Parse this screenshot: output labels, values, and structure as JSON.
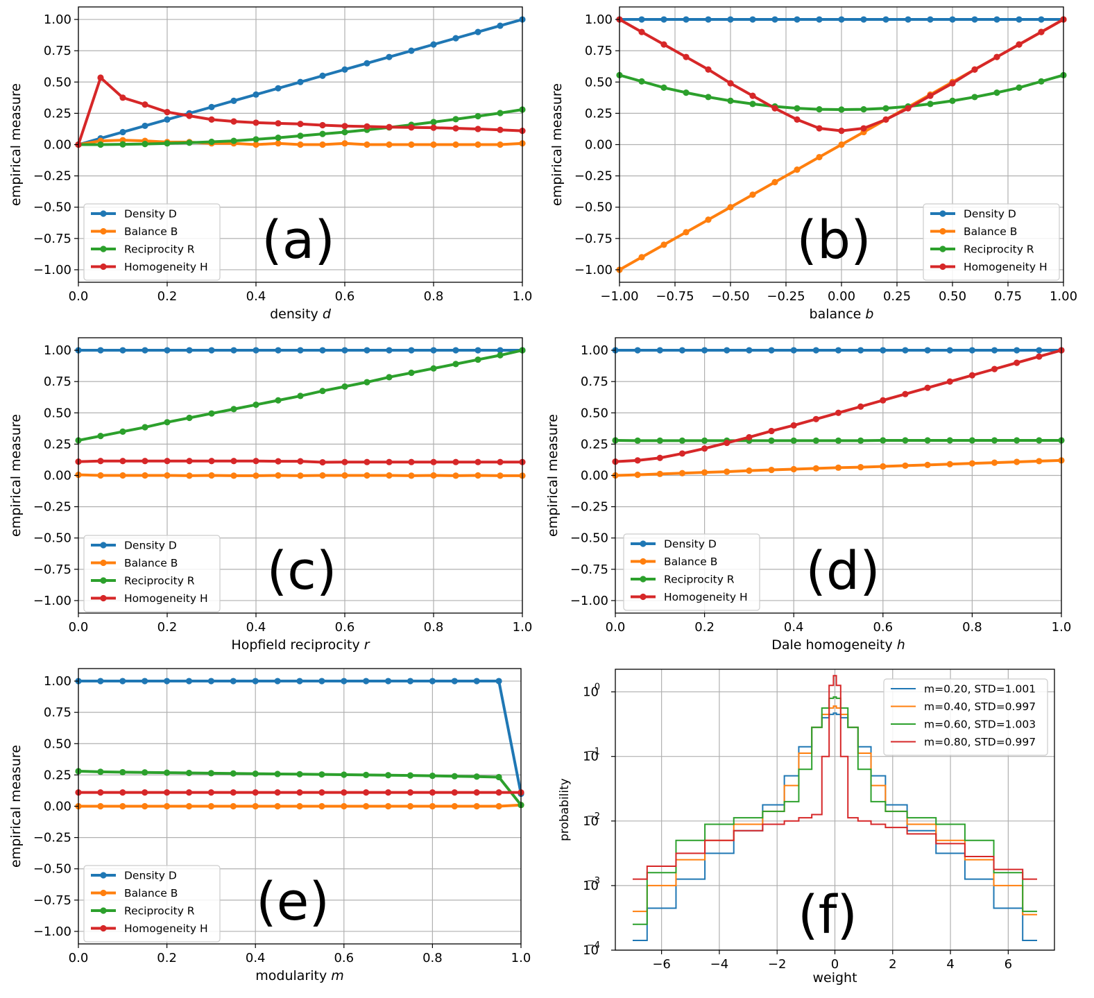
{
  "colors": {
    "blue": "#1f77b4",
    "orange": "#ff7f0e",
    "green": "#2ca02c",
    "red": "#d62728",
    "grid": "#b0b0b0"
  },
  "chart_data": [
    {
      "id": "a",
      "type": "line",
      "panel_label": "(a)",
      "xlabel_text": "density ",
      "xlabel_var": "d",
      "ylabel": "empirical measure",
      "xlim": [
        0,
        1
      ],
      "ylim": [
        -1.1,
        1.1
      ],
      "xticks": [
        "0.0",
        "0.2",
        "0.4",
        "0.6",
        "0.8",
        "1.0"
      ],
      "xtick_values": [
        0,
        0.2,
        0.4,
        0.6,
        0.8,
        1.0
      ],
      "yticks": [
        "−1.00",
        "−0.75",
        "−0.50",
        "−0.25",
        "0.00",
        "0.25",
        "0.50",
        "0.75",
        "1.00"
      ],
      "ytick_values": [
        -1,
        -0.75,
        -0.5,
        -0.25,
        0,
        0.25,
        0.5,
        0.75,
        1
      ],
      "legend_position": "lower-left",
      "x": [
        0,
        0.05,
        0.1,
        0.15,
        0.2,
        0.25,
        0.3,
        0.35,
        0.4,
        0.45,
        0.5,
        0.55,
        0.6,
        0.65,
        0.7,
        0.75,
        0.8,
        0.85,
        0.9,
        0.95,
        1.0
      ],
      "series": [
        {
          "name": "Density D",
          "color": "#1f77b4",
          "values": [
            0,
            0.05,
            0.1,
            0.15,
            0.2,
            0.25,
            0.3,
            0.35,
            0.4,
            0.45,
            0.5,
            0.55,
            0.6,
            0.65,
            0.7,
            0.75,
            0.8,
            0.85,
            0.9,
            0.95,
            1.0
          ]
        },
        {
          "name": "Balance B",
          "color": "#ff7f0e",
          "values": [
            0,
            0.03,
            0.035,
            0.03,
            0.02,
            0.02,
            0.01,
            0.01,
            0.0,
            0.01,
            0.0,
            0.0,
            0.01,
            0.0,
            0.0,
            0.0,
            0.0,
            0.0,
            0.0,
            0.0,
            0.01
          ]
        },
        {
          "name": "Reciprocity R",
          "color": "#2ca02c",
          "values": [
            0,
            0,
            0.002,
            0.005,
            0.01,
            0.015,
            0.022,
            0.03,
            0.042,
            0.055,
            0.07,
            0.085,
            0.1,
            0.118,
            0.137,
            0.158,
            0.18,
            0.203,
            0.227,
            0.252,
            0.28
          ]
        },
        {
          "name": "Homogeneity H",
          "color": "#d62728",
          "values": [
            0,
            0.535,
            0.375,
            0.32,
            0.26,
            0.23,
            0.2,
            0.185,
            0.175,
            0.17,
            0.165,
            0.155,
            0.148,
            0.145,
            0.14,
            0.137,
            0.135,
            0.13,
            0.125,
            0.118,
            0.11
          ]
        }
      ]
    },
    {
      "id": "b",
      "type": "line",
      "panel_label": "(b)",
      "xlabel_text": "balance ",
      "xlabel_var": "b",
      "ylabel": "empirical measure",
      "xlim": [
        -1,
        1
      ],
      "ylim": [
        -1.1,
        1.1
      ],
      "xticks": [
        "−1.00",
        "−0.75",
        "−0.50",
        "−0.25",
        "0.00",
        "0.25",
        "0.50",
        "0.75",
        "1.00"
      ],
      "xtick_values": [
        -1,
        -0.75,
        -0.5,
        -0.25,
        0,
        0.25,
        0.5,
        0.75,
        1
      ],
      "yticks": [
        "−1.00",
        "−0.75",
        "−0.50",
        "−0.25",
        "0.00",
        "0.25",
        "0.50",
        "0.75",
        "1.00"
      ],
      "ytick_values": [
        -1,
        -0.75,
        -0.5,
        -0.25,
        0,
        0.25,
        0.5,
        0.75,
        1
      ],
      "legend_position": "lower-right",
      "x": [
        -1,
        -0.9,
        -0.8,
        -0.7,
        -0.6,
        -0.5,
        -0.4,
        -0.3,
        -0.2,
        -0.1,
        0,
        0.1,
        0.2,
        0.3,
        0.4,
        0.5,
        0.6,
        0.7,
        0.8,
        0.9,
        1.0
      ],
      "series": [
        {
          "name": "Density D",
          "color": "#1f77b4",
          "values": [
            1,
            1,
            1,
            1,
            1,
            1,
            1,
            1,
            1,
            1,
            1,
            1,
            1,
            1,
            1,
            1,
            1,
            1,
            1,
            1,
            1
          ]
        },
        {
          "name": "Balance B",
          "color": "#ff7f0e",
          "values": [
            -1,
            -0.9,
            -0.8,
            -0.7,
            -0.6,
            -0.5,
            -0.4,
            -0.3,
            -0.2,
            -0.1,
            0,
            0.1,
            0.2,
            0.3,
            0.4,
            0.5,
            0.6,
            0.7,
            0.8,
            0.9,
            1.0
          ]
        },
        {
          "name": "Reciprocity R",
          "color": "#2ca02c",
          "values": [
            0.555,
            0.505,
            0.455,
            0.415,
            0.38,
            0.35,
            0.325,
            0.305,
            0.29,
            0.282,
            0.28,
            0.282,
            0.29,
            0.305,
            0.325,
            0.35,
            0.38,
            0.415,
            0.455,
            0.505,
            0.555
          ]
        },
        {
          "name": "Homogeneity H",
          "color": "#d62728",
          "values": [
            1.0,
            0.9,
            0.8,
            0.7,
            0.6,
            0.49,
            0.39,
            0.29,
            0.2,
            0.13,
            0.11,
            0.13,
            0.2,
            0.29,
            0.39,
            0.49,
            0.6,
            0.7,
            0.8,
            0.9,
            1.0
          ]
        }
      ]
    },
    {
      "id": "c",
      "type": "line",
      "panel_label": "(c)",
      "xlabel_text": "Hopfield reciprocity ",
      "xlabel_var": "r",
      "ylabel": "empirical measure",
      "xlim": [
        0,
        1
      ],
      "ylim": [
        -1.1,
        1.1
      ],
      "xticks": [
        "0.0",
        "0.2",
        "0.4",
        "0.6",
        "0.8",
        "1.0"
      ],
      "xtick_values": [
        0,
        0.2,
        0.4,
        0.6,
        0.8,
        1.0
      ],
      "yticks": [
        "−1.00",
        "−0.75",
        "−0.50",
        "−0.25",
        "0.00",
        "0.25",
        "0.50",
        "0.75",
        "1.00"
      ],
      "ytick_values": [
        -1,
        -0.75,
        -0.5,
        -0.25,
        0,
        0.25,
        0.5,
        0.75,
        1
      ],
      "legend_position": "lower-left",
      "x": [
        0,
        0.05,
        0.1,
        0.15,
        0.2,
        0.25,
        0.3,
        0.35,
        0.4,
        0.45,
        0.5,
        0.55,
        0.6,
        0.65,
        0.7,
        0.75,
        0.8,
        0.85,
        0.9,
        0.95,
        1.0
      ],
      "series": [
        {
          "name": "Density D",
          "color": "#1f77b4",
          "values": [
            1,
            1,
            1,
            1,
            1,
            1,
            1,
            1,
            1,
            1,
            1,
            1,
            1,
            1,
            1,
            1,
            1,
            1,
            1,
            1,
            1
          ]
        },
        {
          "name": "Balance B",
          "color": "#ff7f0e",
          "values": [
            0.005,
            0.0,
            0.0,
            0.0,
            0.0,
            -0.002,
            0.0,
            -0.002,
            -0.002,
            0.0,
            -0.002,
            0.0,
            0.0,
            0.0,
            0.0,
            -0.002,
            0.0,
            -0.002,
            0.0,
            -0.002,
            -0.002
          ]
        },
        {
          "name": "Reciprocity R",
          "color": "#2ca02c",
          "values": [
            0.28,
            0.315,
            0.35,
            0.385,
            0.425,
            0.46,
            0.495,
            0.53,
            0.565,
            0.6,
            0.635,
            0.675,
            0.71,
            0.745,
            0.785,
            0.82,
            0.855,
            0.89,
            0.925,
            0.96,
            1.0
          ]
        },
        {
          "name": "Homogeneity H",
          "color": "#d62728",
          "values": [
            0.11,
            0.115,
            0.115,
            0.115,
            0.115,
            0.115,
            0.115,
            0.115,
            0.115,
            0.113,
            0.113,
            0.105,
            0.107,
            0.107,
            0.107,
            0.107,
            0.107,
            0.107,
            0.107,
            0.107,
            0.107
          ]
        }
      ]
    },
    {
      "id": "d",
      "type": "line",
      "panel_label": "(d)",
      "xlabel_text": "Dale homogeneity ",
      "xlabel_var": "h",
      "ylabel": "empirical measure",
      "xlim": [
        0,
        1
      ],
      "ylim": [
        -1.1,
        1.1
      ],
      "xticks": [
        "0.0",
        "0.2",
        "0.4",
        "0.6",
        "0.8",
        "1.0"
      ],
      "xtick_values": [
        0,
        0.2,
        0.4,
        0.6,
        0.8,
        1.0
      ],
      "yticks": [
        "−1.00",
        "−0.75",
        "−0.50",
        "−0.25",
        "0.00",
        "0.25",
        "0.50",
        "0.75",
        "1.00"
      ],
      "ytick_values": [
        -1,
        -0.75,
        -0.5,
        -0.25,
        0,
        0.25,
        0.5,
        0.75,
        1
      ],
      "legend_position": "lower-left",
      "x": [
        0,
        0.05,
        0.1,
        0.15,
        0.2,
        0.25,
        0.3,
        0.35,
        0.4,
        0.45,
        0.5,
        0.55,
        0.6,
        0.65,
        0.7,
        0.75,
        0.8,
        0.85,
        0.9,
        0.95,
        1.0
      ],
      "series": [
        {
          "name": "Density D",
          "color": "#1f77b4",
          "values": [
            1,
            1,
            1,
            1,
            1,
            1,
            1,
            1,
            1,
            1,
            1,
            1,
            1,
            1,
            1,
            1,
            1,
            1,
            1,
            1,
            1
          ]
        },
        {
          "name": "Balance B",
          "color": "#ff7f0e",
          "values": [
            0.0,
            0.005,
            0.012,
            0.018,
            0.024,
            0.03,
            0.038,
            0.044,
            0.05,
            0.056,
            0.062,
            0.066,
            0.072,
            0.078,
            0.084,
            0.09,
            0.096,
            0.102,
            0.108,
            0.114,
            0.12
          ]
        },
        {
          "name": "Reciprocity R",
          "color": "#2ca02c",
          "values": [
            0.28,
            0.278,
            0.278,
            0.278,
            0.278,
            0.278,
            0.278,
            0.278,
            0.278,
            0.278,
            0.278,
            0.278,
            0.28,
            0.28,
            0.28,
            0.28,
            0.28,
            0.28,
            0.28,
            0.28,
            0.28
          ]
        },
        {
          "name": "Homogeneity H",
          "color": "#d62728",
          "values": [
            0.11,
            0.12,
            0.14,
            0.175,
            0.215,
            0.26,
            0.305,
            0.355,
            0.4,
            0.45,
            0.5,
            0.55,
            0.6,
            0.65,
            0.7,
            0.75,
            0.8,
            0.85,
            0.9,
            0.95,
            1.0
          ]
        }
      ]
    },
    {
      "id": "e",
      "type": "line",
      "panel_label": "(e)",
      "xlabel_text": "modularity ",
      "xlabel_var": "m",
      "ylabel": "empirical measure",
      "xlim": [
        0,
        1
      ],
      "ylim": [
        -1.1,
        1.1
      ],
      "xticks": [
        "0.0",
        "0.2",
        "0.4",
        "0.6",
        "0.8",
        "1.0"
      ],
      "xtick_values": [
        0,
        0.2,
        0.4,
        0.6,
        0.8,
        1.0
      ],
      "yticks": [
        "−1.00",
        "−0.75",
        "−0.50",
        "−0.25",
        "0.00",
        "0.25",
        "0.50",
        "0.75",
        "1.00"
      ],
      "ytick_values": [
        -1,
        -0.75,
        -0.5,
        -0.25,
        0,
        0.25,
        0.5,
        0.75,
        1
      ],
      "legend_position": "lower-left",
      "x": [
        0,
        0.05,
        0.1,
        0.15,
        0.2,
        0.25,
        0.3,
        0.35,
        0.4,
        0.45,
        0.5,
        0.55,
        0.6,
        0.65,
        0.7,
        0.75,
        0.8,
        0.85,
        0.9,
        0.95,
        1.0
      ],
      "series": [
        {
          "name": "Density D",
          "color": "#1f77b4",
          "values": [
            1,
            1,
            1,
            1,
            1,
            1,
            1,
            1,
            1,
            1,
            1,
            1,
            1,
            1,
            1,
            1,
            1,
            1,
            1,
            1,
            0.1
          ]
        },
        {
          "name": "Balance B",
          "color": "#ff7f0e",
          "values": [
            0,
            0,
            0,
            0,
            0,
            0,
            0,
            0,
            0,
            0,
            0,
            0,
            0,
            0,
            0,
            0,
            0,
            0,
            0,
            0,
            0.01
          ]
        },
        {
          "name": "Reciprocity R",
          "color": "#2ca02c",
          "values": [
            0.28,
            0.275,
            0.272,
            0.27,
            0.268,
            0.266,
            0.264,
            0.262,
            0.26,
            0.258,
            0.256,
            0.254,
            0.252,
            0.25,
            0.248,
            0.246,
            0.243,
            0.24,
            0.237,
            0.233,
            0.01
          ]
        },
        {
          "name": "Homogeneity H",
          "color": "#d62728",
          "values": [
            0.11,
            0.11,
            0.11,
            0.11,
            0.11,
            0.11,
            0.11,
            0.11,
            0.11,
            0.11,
            0.11,
            0.11,
            0.11,
            0.11,
            0.11,
            0.11,
            0.11,
            0.11,
            0.11,
            0.11,
            0.11
          ]
        }
      ]
    },
    {
      "id": "f",
      "type": "line",
      "subtype": "step-histogram-log",
      "panel_label": "(f)",
      "xlabel_text": "weight",
      "xlabel_var": "",
      "ylabel": "probability",
      "xlim": [
        -7.6,
        7.6
      ],
      "ylim_log10": [
        -4,
        0.35
      ],
      "xticks": [
        "−6",
        "−4",
        "−2",
        "0",
        "2",
        "4",
        "6"
      ],
      "xtick_values": [
        -6,
        -4,
        -2,
        0,
        2,
        4,
        6
      ],
      "yticks_base": [
        "10",
        "10",
        "10",
        "10",
        "10"
      ],
      "yticks_exp": [
        "−4",
        "−3",
        "−2",
        "−1",
        "0"
      ],
      "ytick_values_log10": [
        -4,
        -3,
        -2,
        -1,
        0
      ],
      "legend_position": "upper-right",
      "x": [
        -7,
        -6,
        -5,
        -4,
        -3,
        -2,
        -1.5,
        -1,
        -0.6,
        -0.3,
        -0.1,
        0,
        0.1,
        0.3,
        0.6,
        1,
        1.5,
        2,
        3,
        4,
        5,
        6,
        7
      ],
      "series": [
        {
          "name": "m=0.20, STD=1.001",
          "color": "#1f77b4",
          "log10_values": [
            -3.85,
            -3.35,
            -2.9,
            -2.5,
            -2.15,
            -1.75,
            -1.3,
            -0.85,
            -0.55,
            -0.4,
            -0.35,
            -0.33,
            -0.35,
            -0.4,
            -0.55,
            -0.85,
            -1.3,
            -1.75,
            -2.15,
            -2.5,
            -2.9,
            -3.35,
            -3.85
          ]
        },
        {
          "name": "m=0.40, STD=0.997",
          "color": "#ff7f0e",
          "log10_values": [
            -3.4,
            -3.0,
            -2.6,
            -2.3,
            -2.05,
            -1.85,
            -1.45,
            -0.95,
            -0.55,
            -0.35,
            -0.25,
            -0.22,
            -0.25,
            -0.35,
            -0.55,
            -0.95,
            -1.45,
            -1.85,
            -2.05,
            -2.3,
            -2.6,
            -3.0,
            -3.45
          ]
        },
        {
          "name": "m=0.60, STD=1.003",
          "color": "#2ca02c",
          "log10_values": [
            -3.6,
            -2.8,
            -2.3,
            -2.05,
            -1.95,
            -1.85,
            -1.7,
            -1.2,
            -0.55,
            -0.25,
            -0.1,
            -0.08,
            -0.1,
            -0.25,
            -0.55,
            -1.2,
            -1.7,
            -1.85,
            -1.95,
            -2.05,
            -2.3,
            -2.8,
            -3.4
          ]
        },
        {
          "name": "m=0.80, STD=0.997",
          "color": "#d62728",
          "log10_values": [
            -2.9,
            -2.7,
            -2.5,
            -2.3,
            -2.15,
            -2.05,
            -2.0,
            -1.95,
            -1.9,
            -1.0,
            0.1,
            0.25,
            0.1,
            -1.0,
            -1.95,
            -2.0,
            -2.05,
            -2.1,
            -2.2,
            -2.35,
            -2.55,
            -2.75,
            -2.9
          ]
        }
      ]
    }
  ]
}
